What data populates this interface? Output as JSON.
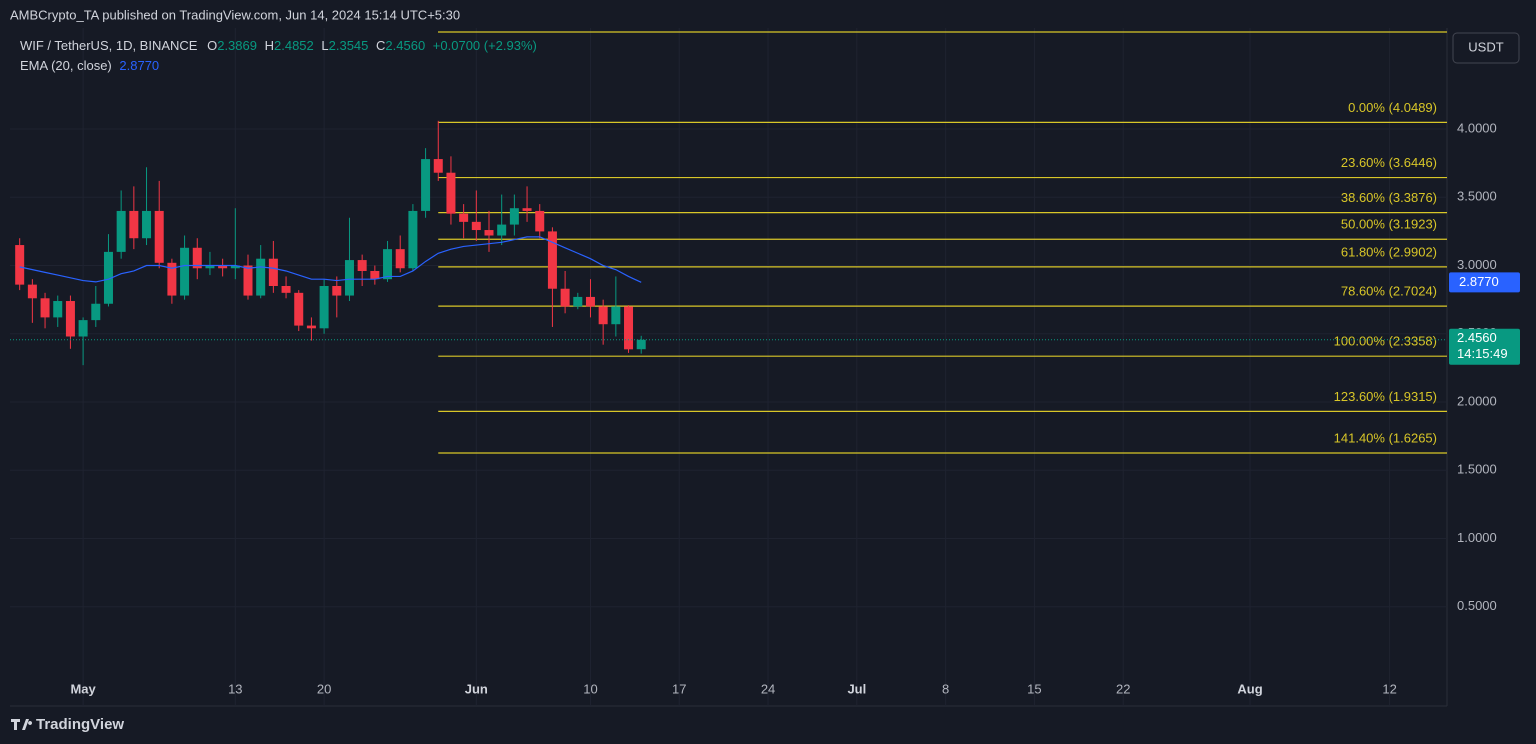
{
  "header": {
    "publisher": "AMBCrypto_TA published on TradingView.com, Jun 14, 2024 15:14 UTC+5:30"
  },
  "legend": {
    "symbol": "WIF / TetherUS, 1D, BINANCE",
    "open_label": "O",
    "open": "2.3869",
    "high_label": "H",
    "high": "2.4852",
    "low_label": "L",
    "low": "2.3545",
    "close_label": "C",
    "close": "2.4560",
    "change": "+0.0700 (+2.93%)",
    "ema_value": "2.8770"
  },
  "currency": "USDT",
  "countdown": "14:15:49",
  "footer": "TradingView",
  "chart_data": {
    "type": "candlestick",
    "x": [
      "2024-04-26",
      "2024-04-27",
      "2024-04-28",
      "2024-04-29",
      "2024-04-30",
      "2024-05-01",
      "2024-05-02",
      "2024-05-03",
      "2024-05-04",
      "2024-05-05",
      "2024-05-06",
      "2024-05-07",
      "2024-05-08",
      "2024-05-09",
      "2024-05-10",
      "2024-05-11",
      "2024-05-12",
      "2024-05-13",
      "2024-05-14",
      "2024-05-15",
      "2024-05-16",
      "2024-05-17",
      "2024-05-18",
      "2024-05-19",
      "2024-05-20",
      "2024-05-21",
      "2024-05-22",
      "2024-05-23",
      "2024-05-24",
      "2024-05-25",
      "2024-05-26",
      "2024-05-27",
      "2024-05-28",
      "2024-05-29",
      "2024-05-30",
      "2024-05-31",
      "2024-06-01",
      "2024-06-02",
      "2024-06-03",
      "2024-06-04",
      "2024-06-05",
      "2024-06-06",
      "2024-06-07",
      "2024-06-08",
      "2024-06-09",
      "2024-06-10",
      "2024-06-11",
      "2024-06-12",
      "2024-06-13",
      "2024-06-14"
    ],
    "open": [
      3.15,
      2.86,
      2.76,
      2.62,
      2.74,
      2.48,
      2.6,
      2.72,
      3.1,
      3.4,
      3.2,
      3.4,
      3.02,
      2.78,
      3.13,
      2.98,
      3.0,
      2.98,
      3.0,
      2.78,
      3.05,
      2.85,
      2.8,
      2.56,
      2.54,
      2.85,
      2.78,
      3.04,
      2.96,
      2.9,
      3.12,
      2.98,
      3.4,
      3.78,
      3.68,
      3.38,
      3.32,
      3.26,
      3.22,
      3.3,
      3.42,
      3.4,
      3.25,
      2.83,
      2.7,
      2.77,
      2.7,
      2.57,
      2.7,
      2.3869
    ],
    "high": [
      3.2,
      2.9,
      2.8,
      2.78,
      2.78,
      2.62,
      2.85,
      3.23,
      3.55,
      3.58,
      3.72,
      3.62,
      3.05,
      3.22,
      3.2,
      3.1,
      3.05,
      3.42,
      3.08,
      3.15,
      3.18,
      2.92,
      2.82,
      2.62,
      2.9,
      2.92,
      3.35,
      3.08,
      3.0,
      3.18,
      3.22,
      3.45,
      3.86,
      4.06,
      3.8,
      3.45,
      3.55,
      3.4,
      3.52,
      3.52,
      3.58,
      3.45,
      3.28,
      2.96,
      2.8,
      2.9,
      2.75,
      2.92,
      2.71,
      2.4852
    ],
    "low": [
      2.82,
      2.58,
      2.54,
      2.55,
      2.39,
      2.27,
      2.55,
      2.7,
      3.05,
      3.12,
      3.15,
      2.98,
      2.72,
      2.75,
      2.9,
      2.93,
      2.92,
      2.9,
      2.75,
      2.76,
      2.8,
      2.76,
      2.52,
      2.45,
      2.5,
      2.62,
      2.74,
      2.85,
      2.86,
      2.88,
      2.95,
      2.96,
      3.35,
      3.62,
      3.3,
      3.2,
      3.18,
      3.1,
      3.15,
      3.22,
      3.32,
      3.2,
      2.55,
      2.65,
      2.68,
      2.62,
      2.42,
      2.48,
      2.36,
      2.3545
    ],
    "close": [
      2.86,
      2.76,
      2.62,
      2.74,
      2.48,
      2.6,
      2.72,
      3.1,
      3.4,
      3.2,
      3.4,
      3.02,
      2.78,
      3.13,
      2.98,
      3.0,
      2.98,
      3.0,
      2.78,
      3.05,
      2.85,
      2.8,
      2.56,
      2.54,
      2.85,
      2.78,
      3.04,
      2.96,
      2.9,
      3.12,
      2.98,
      3.4,
      3.78,
      3.68,
      3.38,
      3.32,
      3.26,
      3.22,
      3.3,
      3.42,
      3.4,
      3.25,
      2.83,
      2.7,
      2.77,
      2.7,
      2.57,
      2.7,
      2.386,
      2.456
    ],
    "up_color": "#089981",
    "down_color": "#f23645",
    "series": [
      {
        "name": "EMA (20, close)",
        "color": "#2962ff",
        "values": [
          2.99,
          2.97,
          2.95,
          2.93,
          2.91,
          2.89,
          2.88,
          2.9,
          2.94,
          2.96,
          3.0,
          3.0,
          2.98,
          3.0,
          3.0,
          3.0,
          3.0,
          3.0,
          2.98,
          2.99,
          2.98,
          2.96,
          2.93,
          2.9,
          2.9,
          2.89,
          2.9,
          2.9,
          2.9,
          2.92,
          2.92,
          2.96,
          3.03,
          3.09,
          3.12,
          3.14,
          3.15,
          3.16,
          3.17,
          3.19,
          3.21,
          3.21,
          3.17,
          3.13,
          3.09,
          3.05,
          3.0,
          2.97,
          2.92,
          2.877
        ]
      }
    ],
    "fib": {
      "color": "#d8c628",
      "start": "2024-05-29",
      "levels": [
        {
          "label": "0.00% (4.0489)",
          "value": 4.0489
        },
        {
          "label": "23.60% (3.6446)",
          "value": 3.6446
        },
        {
          "label": "38.60% (3.3876)",
          "value": 3.3876
        },
        {
          "label": "50.00% (3.1923)",
          "value": 3.1923
        },
        {
          "label": "61.80% (2.9902)",
          "value": 2.9902
        },
        {
          "label": "78.60% (2.7024)",
          "value": 2.7024
        },
        {
          "label": "100.00% (2.3358)",
          "value": 2.3358
        },
        {
          "label": "123.60% (1.9315)",
          "value": 1.9315
        },
        {
          "label": "141.40% (1.6265)",
          "value": 1.6265
        }
      ]
    },
    "xlim": [
      "2024-04-25",
      "2024-08-17"
    ],
    "xticks": [
      {
        "value": "2024-05-01",
        "label": "May"
      },
      {
        "value": "2024-05-13",
        "label": "13"
      },
      {
        "value": "2024-05-20",
        "label": "20"
      },
      {
        "value": "2024-06-01",
        "label": "Jun"
      },
      {
        "value": "2024-06-10",
        "label": "10"
      },
      {
        "value": "2024-06-17",
        "label": "17"
      },
      {
        "value": "2024-06-24",
        "label": "24"
      },
      {
        "value": "2024-07-01",
        "label": "Jul"
      },
      {
        "value": "2024-07-08",
        "label": "8"
      },
      {
        "value": "2024-07-15",
        "label": "15"
      },
      {
        "value": "2024-07-22",
        "label": "22"
      },
      {
        "value": "2024-08-01",
        "label": "Aug"
      },
      {
        "value": "2024-08-12",
        "label": "12"
      }
    ],
    "ylim": [
      0,
      4.73
    ],
    "yticks": [
      {
        "value": 0.5,
        "label": "0.5000"
      },
      {
        "value": 1,
        "label": "1.0000"
      },
      {
        "value": 1.5,
        "label": "1.5000"
      },
      {
        "value": 2,
        "label": "2.0000"
      },
      {
        "value": 2.5,
        "label": "2.5000"
      },
      {
        "value": 3,
        "label": "3.0000"
      },
      {
        "value": 3.5,
        "label": "3.5000"
      },
      {
        "value": 4,
        "label": "4.0000"
      }
    ],
    "grid": true
  }
}
